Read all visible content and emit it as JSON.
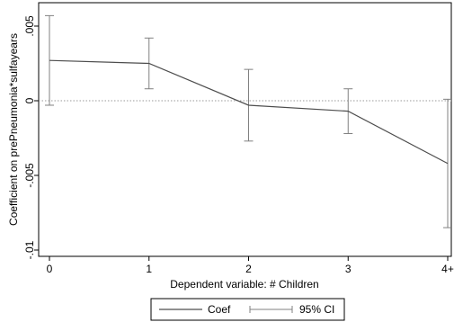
{
  "chart_data": {
    "type": "line",
    "title": "",
    "xlabel": "Dependent variable: # Children",
    "ylabel": "Coefficient on prePneumonia*sulfayears",
    "x": [
      "0",
      "1",
      "2",
      "3",
      "4+"
    ],
    "series": [
      {
        "name": "Coef",
        "values": [
          0.0027,
          0.0025,
          -0.0003,
          -0.0007,
          -0.0042
        ],
        "ci_low": [
          -0.0003,
          0.0008,
          -0.0027,
          -0.0022,
          -0.0085
        ],
        "ci_high": [
          0.0057,
          0.0042,
          0.0021,
          0.0008,
          0.0001
        ]
      }
    ],
    "ci_label": "95% CI",
    "ylim": [
      -0.01,
      0.0055
    ],
    "yticks": [
      {
        "value": 0.005,
        "label": ".005"
      },
      {
        "value": 0,
        "label": "0"
      },
      {
        "value": -0.005,
        "label": "-.005"
      },
      {
        "value": -0.01,
        "label": "-.01"
      }
    ],
    "reference_line": 0,
    "grid": false,
    "legend": "bottom-center",
    "colors": {
      "line": "#4d4d4d",
      "ci": "#808080",
      "axis": "#000000",
      "reference": "#999999"
    }
  }
}
